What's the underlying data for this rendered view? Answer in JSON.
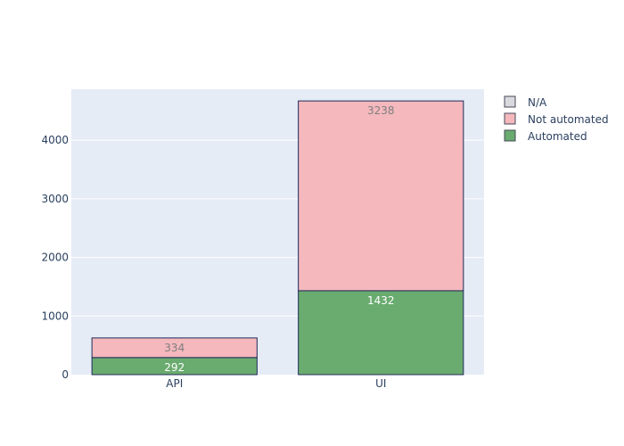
{
  "chart_data": {
    "type": "bar",
    "barmode": "stack",
    "categories": [
      "API",
      "UI"
    ],
    "series": [
      {
        "name": "Automated",
        "values": [
          292,
          1432
        ],
        "color": "#6aab6f",
        "label_color": "#ffffff"
      },
      {
        "name": "Not automated",
        "values": [
          334,
          3238
        ],
        "color": "#f4b8bd",
        "label_color": "#7f7f7f"
      },
      {
        "name": "N/A",
        "values": [
          0,
          0
        ],
        "color": "#d9d9de",
        "label_color": "#7f7f7f"
      }
    ],
    "legend_order": [
      "N/A",
      "Not automated",
      "Automated"
    ],
    "ylim": [
      0,
      4870
    ],
    "yticks": [
      0,
      1000,
      2000,
      3000,
      4000
    ],
    "title": "",
    "xlabel": "",
    "ylabel": "",
    "grid": true,
    "legend_position": "top-right",
    "plot_background": "#e5ecf6",
    "bar_outline_color": "#1f2a5a"
  }
}
